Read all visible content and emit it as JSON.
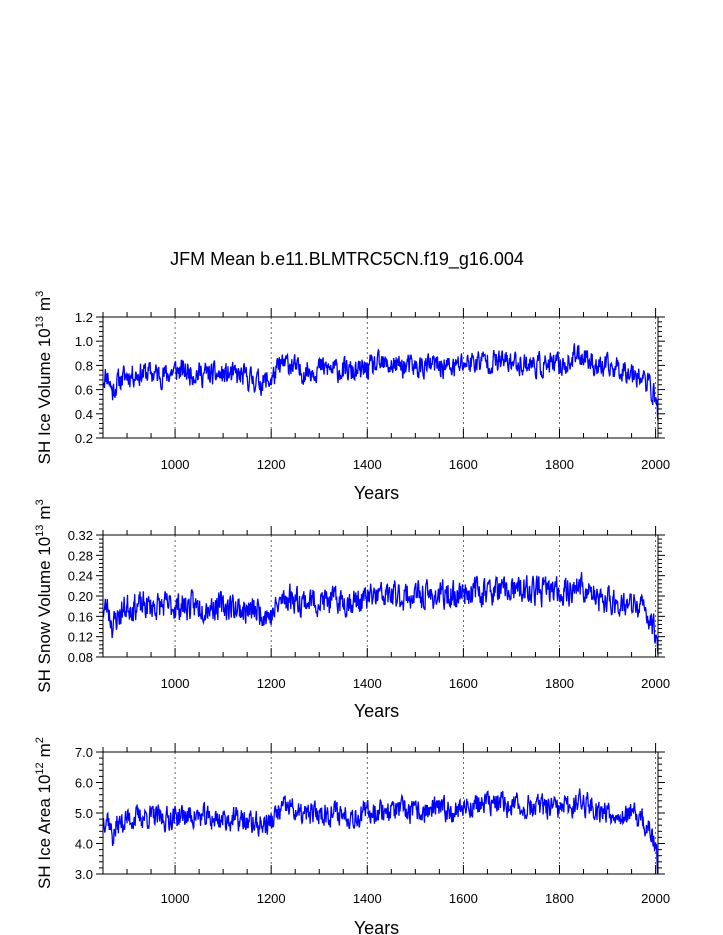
{
  "title": "JFM Mean b.e11.BLMTRC5CN.f19_g16.004",
  "chart_data": [
    {
      "type": "line",
      "xlabel": "Years",
      "ylabel_text": "SH Ice Volume 10",
      "ylabel_exp": "13",
      "ylabel_unit": "m",
      "ylabel_unit_exp": "3",
      "xlim": [
        850,
        2005
      ],
      "ylim": [
        0.2,
        1.2
      ],
      "xticks": [
        1000,
        1200,
        1400,
        1600,
        1800,
        2000
      ],
      "yticks": [
        0.2,
        0.4,
        0.6,
        0.8,
        1.0,
        1.2
      ],
      "ytick_labels": [
        "0.2",
        "0.4",
        "0.6",
        "0.8",
        "1.0",
        "1.2"
      ],
      "grid": "vertical dashed at x ticks",
      "series": [
        {
          "name": "SH Ice Volume",
          "color": "#0000ff",
          "anchors_x": [
            850,
            860,
            870,
            880,
            900,
            940,
            980,
            1000,
            1040,
            1080,
            1120,
            1150,
            1180,
            1200,
            1220,
            1240,
            1260,
            1300,
            1340,
            1380,
            1420,
            1460,
            1500,
            1540,
            1580,
            1600,
            1640,
            1680,
            1720,
            1760,
            1800,
            1820,
            1840,
            1860,
            1880,
            1920,
            1940,
            1960,
            1980,
            1990,
            2000,
            2005
          ],
          "anchors_y": [
            0.7,
            0.72,
            0.58,
            0.66,
            0.72,
            0.74,
            0.72,
            0.76,
            0.74,
            0.72,
            0.72,
            0.7,
            0.66,
            0.68,
            0.8,
            0.82,
            0.74,
            0.78,
            0.76,
            0.74,
            0.8,
            0.8,
            0.78,
            0.8,
            0.78,
            0.82,
            0.84,
            0.83,
            0.82,
            0.8,
            0.8,
            0.82,
            0.9,
            0.86,
            0.78,
            0.78,
            0.76,
            0.74,
            0.66,
            0.62,
            0.52,
            0.4
          ],
          "noise": 0.09,
          "seed": 11
        }
      ]
    },
    {
      "type": "line",
      "xlabel": "Years",
      "ylabel_text": "SH Snow Volume 10",
      "ylabel_exp": "13",
      "ylabel_unit": "m",
      "ylabel_unit_exp": "3",
      "xlim": [
        850,
        2005
      ],
      "ylim": [
        0.08,
        0.32
      ],
      "xticks": [
        1000,
        1200,
        1400,
        1600,
        1800,
        2000
      ],
      "yticks": [
        0.08,
        0.12,
        0.16,
        0.2,
        0.24,
        0.28,
        0.32
      ],
      "ytick_labels": [
        "0.08",
        "0.12",
        "0.16",
        "0.20",
        "0.24",
        "0.28",
        "0.32"
      ],
      "grid": "vertical dashed at x ticks",
      "series": [
        {
          "name": "SH Snow Volume",
          "color": "#0000ff",
          "anchors_x": [
            850,
            860,
            870,
            880,
            900,
            940,
            980,
            1000,
            1040,
            1080,
            1120,
            1150,
            1180,
            1200,
            1220,
            1240,
            1260,
            1300,
            1340,
            1380,
            1420,
            1460,
            1500,
            1540,
            1580,
            1600,
            1640,
            1680,
            1720,
            1760,
            1800,
            1820,
            1840,
            1860,
            1880,
            1920,
            1940,
            1960,
            1980,
            1990,
            2000,
            2005
          ],
          "anchors_y": [
            0.17,
            0.18,
            0.14,
            0.16,
            0.18,
            0.18,
            0.18,
            0.18,
            0.18,
            0.18,
            0.18,
            0.17,
            0.17,
            0.16,
            0.19,
            0.2,
            0.19,
            0.19,
            0.19,
            0.19,
            0.2,
            0.2,
            0.2,
            0.2,
            0.2,
            0.21,
            0.21,
            0.21,
            0.21,
            0.21,
            0.21,
            0.21,
            0.22,
            0.21,
            0.19,
            0.19,
            0.18,
            0.18,
            0.17,
            0.15,
            0.13,
            0.1
          ],
          "noise": 0.025,
          "seed": 23
        }
      ]
    },
    {
      "type": "line",
      "xlabel": "Years",
      "ylabel_text": "SH Ice Area 10",
      "ylabel_exp": "12",
      "ylabel_unit": "m",
      "ylabel_unit_exp": "2",
      "xlim": [
        850,
        2005
      ],
      "ylim": [
        3.0,
        7.0
      ],
      "xticks": [
        1000,
        1200,
        1400,
        1600,
        1800,
        2000
      ],
      "yticks": [
        3.0,
        4.0,
        5.0,
        6.0,
        7.0
      ],
      "ytick_labels": [
        "3.0",
        "4.0",
        "5.0",
        "6.0",
        "7.0"
      ],
      "grid": "vertical dashed at x ticks",
      "series": [
        {
          "name": "SH Ice Area",
          "color": "#0000ff",
          "anchors_x": [
            850,
            860,
            870,
            880,
            900,
            940,
            980,
            1000,
            1040,
            1080,
            1120,
            1150,
            1180,
            1200,
            1220,
            1240,
            1260,
            1300,
            1340,
            1380,
            1420,
            1460,
            1500,
            1540,
            1580,
            1600,
            1640,
            1680,
            1720,
            1760,
            1800,
            1820,
            1840,
            1860,
            1880,
            1920,
            1940,
            1960,
            1980,
            1990,
            2000,
            2005
          ],
          "anchors_y": [
            4.8,
            4.9,
            4.2,
            4.6,
            4.8,
            4.9,
            4.8,
            4.9,
            4.9,
            4.8,
            4.8,
            4.7,
            4.6,
            4.7,
            5.1,
            5.2,
            4.9,
            5.0,
            5.0,
            4.9,
            5.1,
            5.1,
            5.0,
            5.1,
            5.1,
            5.2,
            5.3,
            5.3,
            5.2,
            5.2,
            5.1,
            5.2,
            5.4,
            5.3,
            5.1,
            5.0,
            4.9,
            4.9,
            4.6,
            4.3,
            3.8,
            3.2
          ],
          "noise": 0.36,
          "seed": 37
        }
      ]
    }
  ]
}
